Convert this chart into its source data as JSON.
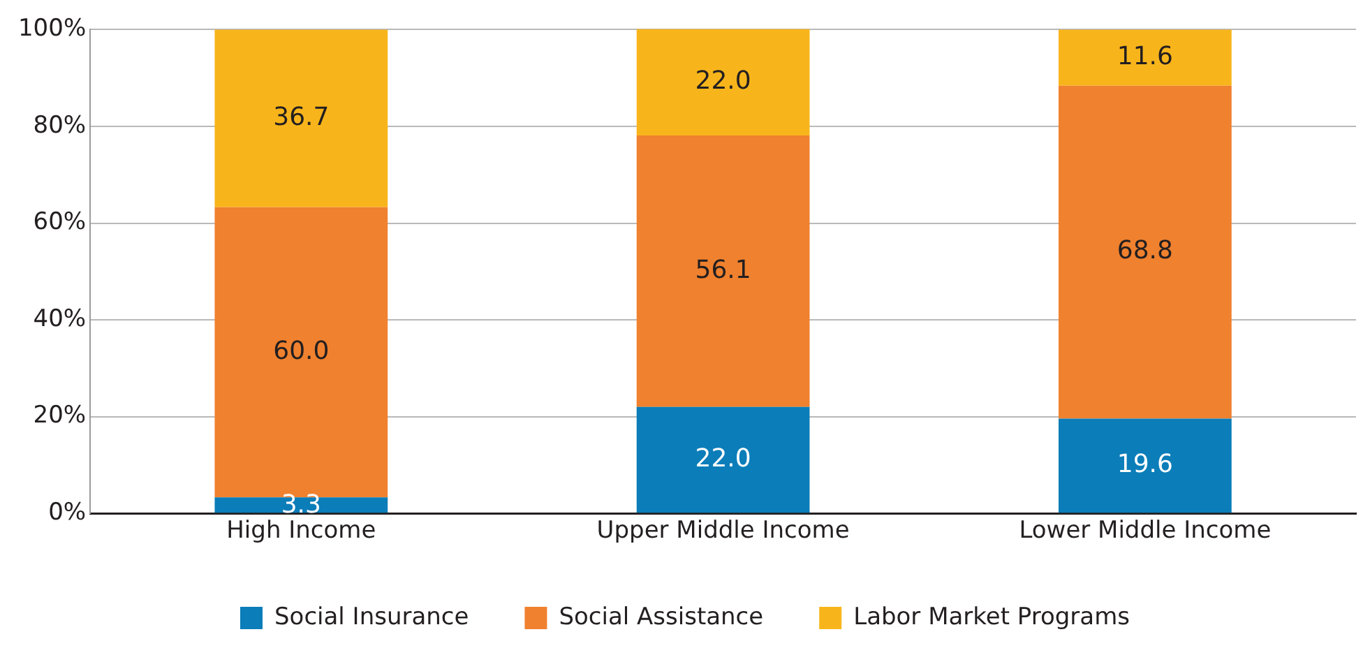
{
  "chart_data": {
    "type": "bar",
    "stacked": true,
    "categories": [
      "High Income",
      "Upper Middle Income",
      "Lower Middle Income"
    ],
    "series": [
      {
        "name": "Social Insurance",
        "color": "#0b7db9",
        "values": [
          3.3,
          22.0,
          19.6
        ],
        "value_labels": [
          "3.3",
          "22.0",
          "19.6"
        ]
      },
      {
        "name": "Social Assistance",
        "color": "#f0812e",
        "values": [
          60.0,
          56.1,
          68.8
        ],
        "value_labels": [
          "60.0",
          "56.1",
          "68.8"
        ]
      },
      {
        "name": "Labor Market Programs",
        "color": "#f8b51b",
        "values": [
          36.7,
          22.0,
          11.6
        ],
        "value_labels": [
          "36.7",
          "22.0",
          "11.6"
        ]
      }
    ],
    "ylim": [
      0,
      100
    ],
    "yticks": [
      {
        "value": 0,
        "label": "0%"
      },
      {
        "value": 20,
        "label": "20%"
      },
      {
        "value": 40,
        "label": "40%"
      },
      {
        "value": 60,
        "label": "60%"
      },
      {
        "value": 80,
        "label": "80%"
      },
      {
        "value": 100,
        "label": "100%"
      }
    ],
    "grid": "y",
    "legend": "bottom"
  }
}
